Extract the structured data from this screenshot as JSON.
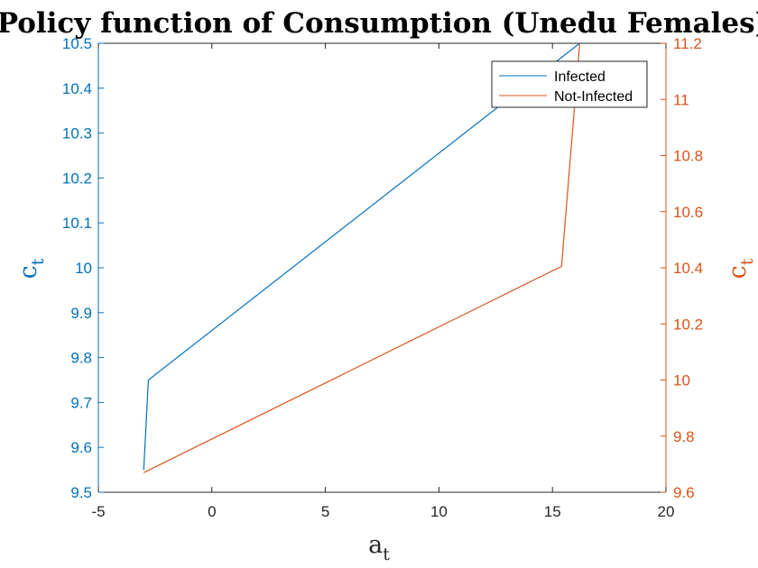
{
  "chart_data": {
    "type": "line",
    "title": "Policy function of Consumption (Unedu Females)",
    "xlabel": {
      "base": "a",
      "sub": "t"
    },
    "ylabel_left": {
      "base": "c",
      "sub": "t"
    },
    "ylabel_right": {
      "base": "c",
      "sub": "t"
    },
    "xlim": [
      -5,
      20
    ],
    "ylim_left": [
      9.5,
      10.5
    ],
    "ylim_right": [
      9.6,
      11.2
    ],
    "x_ticks": [
      "-5",
      "0",
      "5",
      "10",
      "15",
      "20"
    ],
    "y_left_ticks": [
      "9.5",
      "9.6",
      "9.7",
      "9.8",
      "9.9",
      "10",
      "10.1",
      "10.2",
      "10.3",
      "10.4",
      "10.5"
    ],
    "y_right_ticks": [
      "9.6",
      "9.8",
      "10",
      "10.2",
      "10.4",
      "10.6",
      "10.8",
      "11",
      "11.2"
    ],
    "grid": false,
    "legend_position": "top-right",
    "series": [
      {
        "name": "Infected",
        "axis": "left",
        "color": "#0072BD",
        "x": [
          -3.0,
          -2.8,
          16.2
        ],
        "y": [
          9.55,
          9.75,
          10.5
        ]
      },
      {
        "name": "Not-Infected",
        "axis": "right",
        "color": "#D95319",
        "x": [
          -3.0,
          15.4,
          16.2
        ],
        "y": [
          9.67,
          10.405,
          11.2
        ]
      }
    ],
    "axis_colors": {
      "left": "#0072BD",
      "right": "#D95319",
      "x": "#262626"
    }
  }
}
